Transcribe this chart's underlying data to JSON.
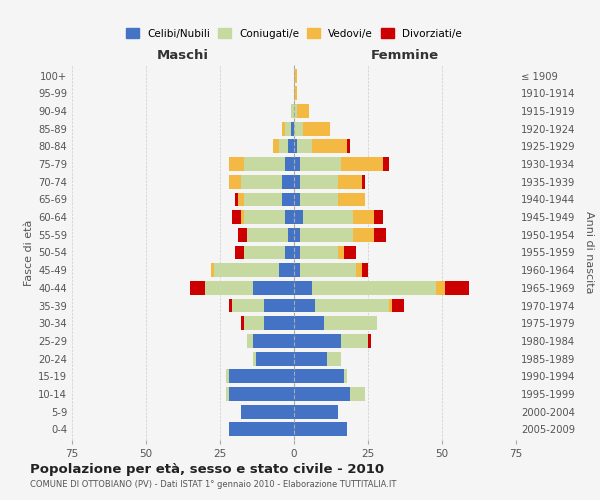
{
  "age_groups": [
    "0-4",
    "5-9",
    "10-14",
    "15-19",
    "20-24",
    "25-29",
    "30-34",
    "35-39",
    "40-44",
    "45-49",
    "50-54",
    "55-59",
    "60-64",
    "65-69",
    "70-74",
    "75-79",
    "80-84",
    "85-89",
    "90-94",
    "95-99",
    "100+"
  ],
  "birth_years": [
    "2005-2009",
    "2000-2004",
    "1995-1999",
    "1990-1994",
    "1985-1989",
    "1980-1984",
    "1975-1979",
    "1970-1974",
    "1965-1969",
    "1960-1964",
    "1955-1959",
    "1950-1954",
    "1945-1949",
    "1940-1944",
    "1935-1939",
    "1930-1934",
    "1925-1929",
    "1920-1924",
    "1915-1919",
    "1910-1914",
    "≤ 1909"
  ],
  "male_celibi": [
    22,
    18,
    22,
    22,
    13,
    14,
    10,
    10,
    14,
    5,
    3,
    2,
    3,
    4,
    4,
    3,
    2,
    1,
    0,
    0,
    0
  ],
  "male_coniugati": [
    0,
    0,
    1,
    1,
    1,
    2,
    7,
    11,
    16,
    22,
    14,
    14,
    14,
    13,
    14,
    14,
    3,
    2,
    1,
    0,
    0
  ],
  "male_vedovi": [
    0,
    0,
    0,
    0,
    0,
    0,
    0,
    0,
    0,
    1,
    0,
    0,
    1,
    2,
    4,
    5,
    2,
    1,
    0,
    0,
    0
  ],
  "male_divorziati": [
    0,
    0,
    0,
    0,
    0,
    0,
    1,
    1,
    5,
    0,
    3,
    3,
    3,
    1,
    0,
    0,
    0,
    0,
    0,
    0,
    0
  ],
  "female_celibi": [
    18,
    15,
    19,
    17,
    11,
    16,
    10,
    7,
    6,
    2,
    2,
    2,
    3,
    2,
    2,
    2,
    1,
    0,
    0,
    0,
    0
  ],
  "female_coniugati": [
    0,
    0,
    5,
    1,
    5,
    9,
    18,
    25,
    42,
    19,
    13,
    18,
    17,
    13,
    13,
    14,
    5,
    3,
    1,
    0,
    0
  ],
  "female_vedovi": [
    0,
    0,
    0,
    0,
    0,
    0,
    0,
    1,
    3,
    2,
    2,
    7,
    7,
    9,
    8,
    14,
    12,
    9,
    4,
    1,
    1
  ],
  "female_divorziati": [
    0,
    0,
    0,
    0,
    0,
    1,
    0,
    4,
    8,
    2,
    4,
    4,
    3,
    0,
    1,
    2,
    1,
    0,
    0,
    0,
    0
  ],
  "colors": {
    "celibi": "#4472c4",
    "coniugati": "#c6d9a0",
    "vedovi": "#f4b942",
    "divorziati": "#cc0000"
  },
  "title": "Popolazione per età, sesso e stato civile - 2010",
  "subtitle": "COMUNE DI OTTOBIANO (PV) - Dati ISTAT 1° gennaio 2010 - Elaborazione TUTTITALIA.IT",
  "xlabel_left": "Maschi",
  "xlabel_right": "Femmine",
  "ylabel_left": "Fasce di età",
  "ylabel_right": "Anni di nascita",
  "xlim": 75,
  "bg_color": "#f5f5f5",
  "grid_color": "#cccccc"
}
